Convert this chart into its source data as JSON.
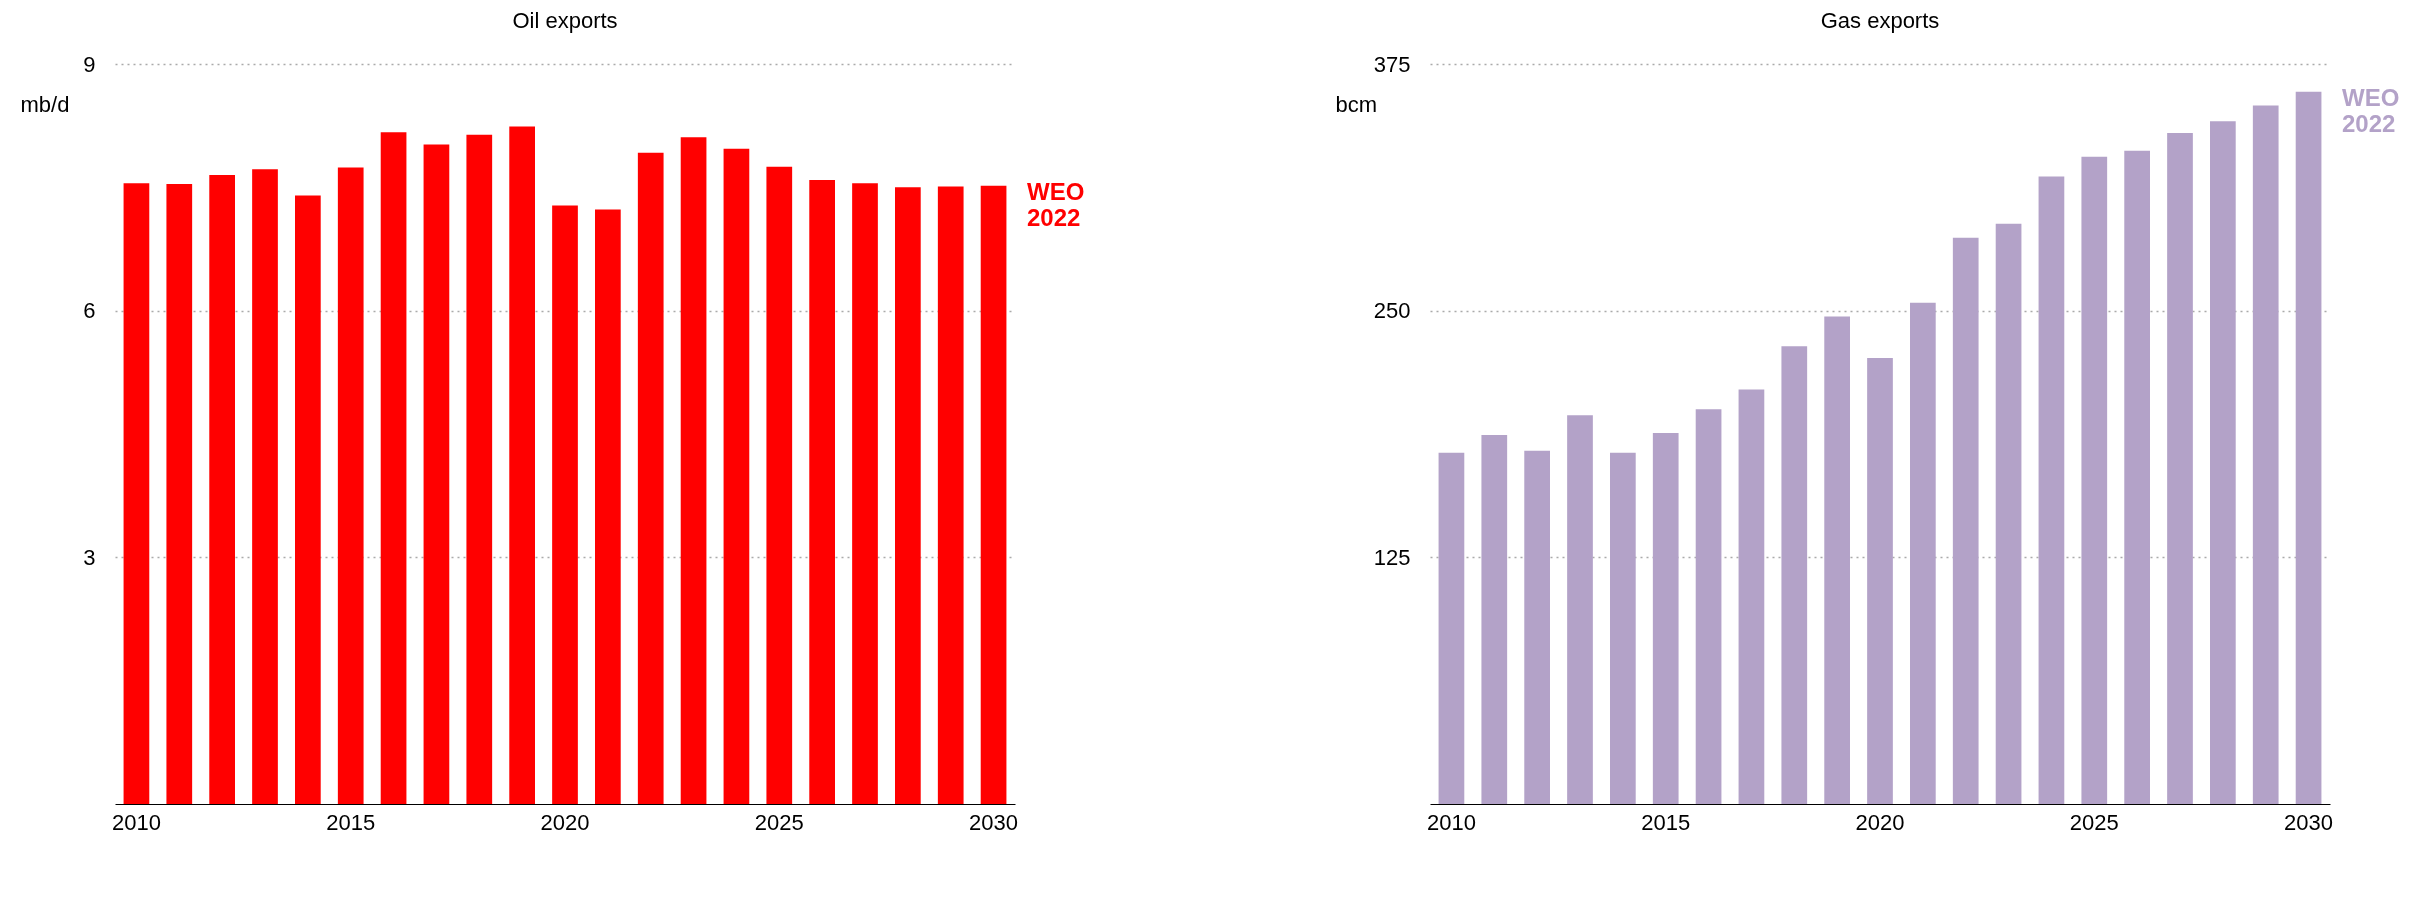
{
  "chart_data": [
    {
      "type": "bar",
      "title": "Oil exports",
      "ylabel": "mb/d",
      "categories": [
        "2010",
        null,
        null,
        null,
        null,
        "2015",
        null,
        null,
        null,
        null,
        "2020",
        null,
        null,
        null,
        null,
        "2025",
        null,
        null,
        null,
        null,
        "2030"
      ],
      "ylim": [
        0,
        9
      ],
      "yticks": [
        3,
        6,
        9
      ],
      "grid": "y",
      "series": [
        {
          "name": "WEO 2022",
          "color": "#ff0000",
          "values": [
            7.55,
            7.54,
            7.65,
            7.72,
            7.4,
            7.74,
            8.17,
            8.02,
            8.14,
            8.24,
            7.28,
            7.23,
            7.92,
            8.11,
            7.97,
            7.75,
            7.59,
            7.55,
            7.5,
            7.51,
            7.52
          ]
        }
      ]
    },
    {
      "type": "bar",
      "title": "Gas exports",
      "ylabel": "bcm",
      "categories": [
        "2010",
        null,
        null,
        null,
        null,
        "2015",
        null,
        null,
        null,
        null,
        "2020",
        null,
        null,
        null,
        null,
        "2025",
        null,
        null,
        null,
        null,
        "2030"
      ],
      "ylim": [
        0,
        375
      ],
      "yticks": [
        125,
        250,
        375
      ],
      "grid": "y",
      "series": [
        {
          "name": "WEO 2022",
          "color": "#b3a2c8",
          "values": [
            178,
            187,
            179,
            197,
            178,
            188,
            200,
            210,
            232,
            247,
            226,
            254,
            287,
            294,
            318,
            328,
            331,
            340,
            346,
            354,
            361
          ]
        }
      ]
    }
  ]
}
